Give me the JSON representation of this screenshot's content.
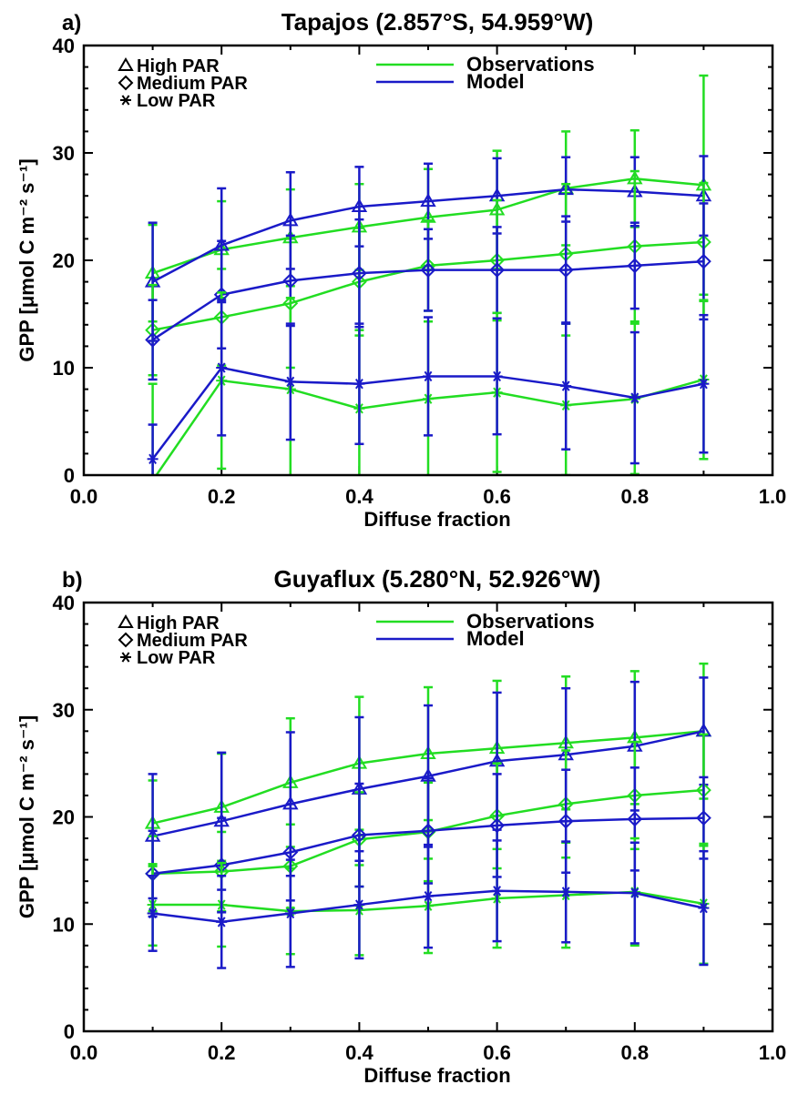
{
  "colors": {
    "observations": "#22dd22",
    "model": "#1a1ac8",
    "axes": "#000000"
  },
  "chart_data": [
    {
      "type": "line",
      "panel_label": "a)",
      "title": "Tapajos (2.857°S, 54.959°W)",
      "xlabel": "Diffuse fraction",
      "ylabel": "GPP [μmol C m⁻² s⁻¹]",
      "xlim": [
        0.0,
        1.0
      ],
      "ylim": [
        0,
        40
      ],
      "xticks": [
        "0.0",
        "0.2",
        "0.4",
        "0.6",
        "0.8",
        "1.0"
      ],
      "yticks": [
        "0",
        "10",
        "20",
        "30",
        "40"
      ],
      "grid": false,
      "legend_position": "top",
      "legend_markers": [
        {
          "marker": "triangle",
          "label": "High PAR"
        },
        {
          "marker": "diamond",
          "label": "Medium PAR"
        },
        {
          "marker": "asterisk",
          "label": "Low PAR"
        }
      ],
      "legend_lines": [
        {
          "color_key": "observations",
          "label": "Observations"
        },
        {
          "color_key": "model",
          "label": "Model"
        }
      ],
      "x": [
        0.1,
        0.2,
        0.3,
        0.4,
        0.5,
        0.6,
        0.7,
        0.8,
        0.9
      ],
      "series": [
        {
          "source": "observations",
          "par": "high",
          "marker": "triangle",
          "values": [
            18.8,
            21.0,
            22.1,
            23.1,
            24.0,
            24.7,
            26.7,
            27.6,
            27.0
          ],
          "err": [
            4.5,
            4.5,
            4.5,
            4.0,
            4.5,
            5.5,
            5.3,
            4.5,
            10.2
          ]
        },
        {
          "source": "model",
          "par": "high",
          "marker": "triangle",
          "values": [
            18.0,
            21.4,
            23.7,
            25.0,
            25.5,
            26.0,
            26.6,
            26.4,
            26.0
          ],
          "err": [
            5.5,
            5.3,
            4.5,
            3.7,
            3.5,
            3.5,
            3.0,
            3.2,
            3.7
          ]
        },
        {
          "source": "observations",
          "par": "medium",
          "marker": "diamond",
          "values": [
            13.5,
            14.7,
            16.0,
            18.0,
            19.5,
            20.0,
            20.6,
            21.3,
            21.7
          ],
          "err": [
            4.2,
            4.5,
            6.0,
            5.0,
            4.2,
            5.6,
            6.5,
            7.0,
            5.5
          ]
        },
        {
          "source": "model",
          "par": "medium",
          "marker": "diamond",
          "values": [
            12.6,
            16.8,
            18.1,
            18.8,
            19.1,
            19.1,
            19.1,
            19.5,
            19.9
          ],
          "err": [
            3.7,
            5.0,
            4.2,
            5.0,
            3.8,
            4.0,
            5.0,
            4.0,
            5.4
          ]
        },
        {
          "source": "observations",
          "par": "low",
          "marker": "asterisk",
          "values": [
            -0.5,
            8.8,
            8.0,
            6.2,
            7.1,
            7.7,
            6.5,
            7.1,
            8.9
          ],
          "err": [
            9.0,
            8.2,
            8.5,
            7.3,
            7.2,
            7.4,
            6.5,
            7.0,
            7.4
          ]
        },
        {
          "source": "model",
          "par": "low",
          "marker": "asterisk",
          "values": [
            1.5,
            10.0,
            8.7,
            8.5,
            9.2,
            9.2,
            8.3,
            7.2,
            8.5
          ],
          "err": [
            3.2,
            6.3,
            5.4,
            5.6,
            5.5,
            5.4,
            5.9,
            6.1,
            6.4
          ]
        }
      ]
    },
    {
      "type": "line",
      "panel_label": "b)",
      "title": "Guyaflux (5.280°N, 52.926°W)",
      "xlabel": "Diffuse fraction",
      "ylabel": "GPP [μmol C m⁻² s⁻¹]",
      "xlim": [
        0.0,
        1.0
      ],
      "ylim": [
        0,
        40
      ],
      "xticks": [
        "0.0",
        "0.2",
        "0.4",
        "0.6",
        "0.8",
        "1.0"
      ],
      "yticks": [
        "0",
        "10",
        "20",
        "30",
        "40"
      ],
      "grid": false,
      "legend_position": "top",
      "legend_markers": [
        {
          "marker": "triangle",
          "label": "High PAR"
        },
        {
          "marker": "diamond",
          "label": "Medium PAR"
        },
        {
          "marker": "asterisk",
          "label": "Low PAR"
        }
      ],
      "legend_lines": [
        {
          "color_key": "observations",
          "label": "Observations"
        },
        {
          "color_key": "model",
          "label": "Model"
        }
      ],
      "x": [
        0.1,
        0.2,
        0.3,
        0.4,
        0.5,
        0.6,
        0.7,
        0.8,
        0.9
      ],
      "series": [
        {
          "source": "observations",
          "par": "high",
          "marker": "triangle",
          "values": [
            19.4,
            20.9,
            23.2,
            25.0,
            25.9,
            26.4,
            26.9,
            27.4,
            28.0
          ],
          "err": [
            4.0,
            5.0,
            6.0,
            6.2,
            6.2,
            6.3,
            6.2,
            6.2,
            6.3
          ]
        },
        {
          "source": "model",
          "par": "high",
          "marker": "triangle",
          "values": [
            18.2,
            19.6,
            21.2,
            22.6,
            23.8,
            25.2,
            25.8,
            26.6,
            28.0
          ],
          "err": [
            5.8,
            6.4,
            6.7,
            6.7,
            6.6,
            6.4,
            6.2,
            6.0,
            5.0
          ]
        },
        {
          "source": "observations",
          "par": "medium",
          "marker": "diamond",
          "values": [
            14.7,
            14.9,
            15.4,
            17.9,
            18.6,
            20.1,
            21.2,
            22.0,
            22.5
          ],
          "err": [
            3.5,
            3.7,
            3.9,
            4.4,
            4.6,
            4.9,
            5.0,
            5.0,
            5.2
          ]
        },
        {
          "source": "model",
          "par": "medium",
          "marker": "diamond",
          "values": [
            14.7,
            15.5,
            16.7,
            18.3,
            18.7,
            19.2,
            19.6,
            19.8,
            19.9
          ],
          "err": [
            4.0,
            4.4,
            4.5,
            4.8,
            4.9,
            4.8,
            4.8,
            4.8,
            3.8
          ]
        },
        {
          "source": "observations",
          "par": "low",
          "marker": "asterisk",
          "values": [
            11.8,
            11.8,
            11.2,
            11.3,
            11.7,
            12.4,
            12.7,
            13.0,
            11.9
          ],
          "err": [
            3.8,
            3.9,
            4.0,
            4.2,
            4.4,
            4.6,
            4.9,
            5.0,
            5.6
          ]
        },
        {
          "source": "model",
          "par": "low",
          "marker": "asterisk",
          "values": [
            11.0,
            10.2,
            11.0,
            11.8,
            12.6,
            13.1,
            13.0,
            12.9,
            11.5
          ],
          "err": [
            3.5,
            4.3,
            5.0,
            5.0,
            4.8,
            4.7,
            4.7,
            4.7,
            5.3
          ]
        }
      ]
    }
  ]
}
